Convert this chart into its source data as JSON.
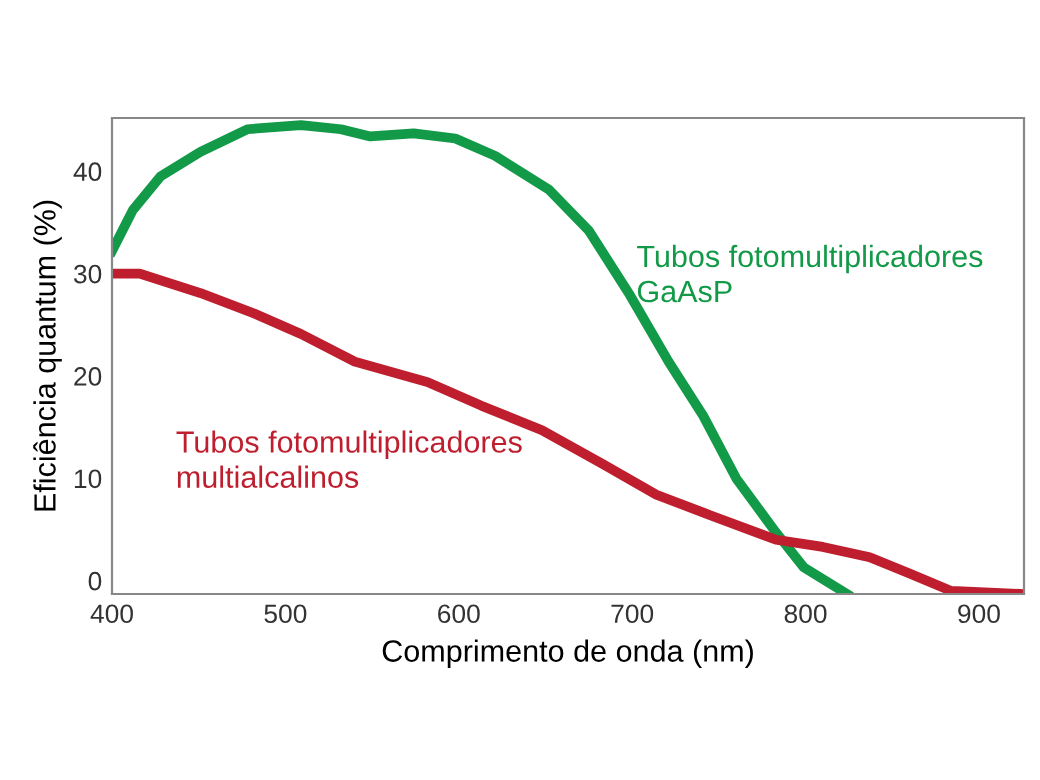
{
  "chart_data": {
    "type": "line",
    "xlabel": "Comprimento de onda (nm)",
    "ylabel": "Eficiência quantum (%)",
    "xlim": [
      400,
      926
    ],
    "ylim": [
      -1.3,
      45.2
    ],
    "xticks": [
      400,
      500,
      600,
      700,
      800,
      900
    ],
    "yticks": [
      0,
      10,
      20,
      30,
      40
    ],
    "grid": false,
    "legend": false,
    "marker": "none",
    "line_style": "solid",
    "series": [
      {
        "name": "Tubos fotomultiplicadores GaAsP",
        "color": "#129a48",
        "x": [
          400,
          412,
          428,
          451,
          478,
          509,
          532,
          549,
          574,
          598,
          621,
          652,
          675,
          698,
          721,
          741,
          760,
          783,
          799,
          824
        ],
        "values": [
          32.2,
          36.2,
          39.5,
          41.9,
          44.1,
          44.5,
          44.1,
          43.4,
          43.7,
          43.2,
          41.5,
          38.2,
          34.2,
          28.1,
          21.4,
          16.1,
          10,
          4.7,
          1.3,
          -1.3
        ]
      },
      {
        "name": "Tubos fotomultiplicadores multialcalinos",
        "color": "#be1e2d",
        "x": [
          400,
          416,
          451,
          482,
          509,
          540,
          582,
          613,
          648,
          683,
          714,
          745,
          783,
          810,
          837,
          860,
          884,
          926
        ],
        "values": [
          30,
          30,
          28.1,
          26.1,
          24.1,
          21.4,
          19.4,
          17.1,
          14.7,
          11.4,
          8.4,
          6.4,
          4,
          3.3,
          2.3,
          0.7,
          -1,
          -1.3
        ]
      }
    ]
  }
}
